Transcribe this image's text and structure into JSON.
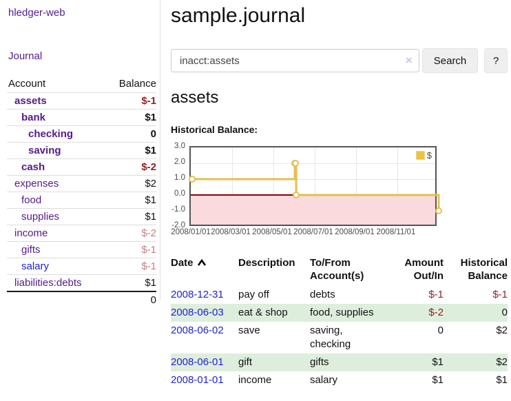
{
  "app": {
    "brand": "hledger-web",
    "nav_journal": "Journal"
  },
  "sidebar": {
    "header": {
      "account": "Account",
      "balance": "Balance"
    },
    "accounts": [
      {
        "name": "assets",
        "balance": "$-1",
        "indent": 1,
        "weight": "bold",
        "link": "purple",
        "tone": "neg"
      },
      {
        "name": "bank",
        "balance": "$1",
        "indent": 2,
        "weight": "bold",
        "link": "purple",
        "tone": "plain"
      },
      {
        "name": "checking",
        "balance": "0",
        "indent": 3,
        "weight": "bold",
        "link": "purple",
        "tone": "plain"
      },
      {
        "name": "saving",
        "balance": "$1",
        "indent": 3,
        "weight": "bold",
        "link": "purple",
        "tone": "plain"
      },
      {
        "name": "cash",
        "balance": "$-2",
        "indent": 2,
        "weight": "bold",
        "link": "purple",
        "tone": "neg"
      },
      {
        "name": "expenses",
        "balance": "$2",
        "indent": 1,
        "weight": "normal",
        "link": "purple",
        "tone": "plain"
      },
      {
        "name": "food",
        "balance": "$1",
        "indent": 2,
        "weight": "normal",
        "link": "purple",
        "tone": "plain"
      },
      {
        "name": "supplies",
        "balance": "$1",
        "indent": 2,
        "weight": "normal",
        "link": "purple",
        "tone": "plain"
      },
      {
        "name": "income",
        "balance": "$-2",
        "indent": 1,
        "weight": "normal",
        "link": "purple",
        "tone": "muted"
      },
      {
        "name": "gifts",
        "balance": "$-1",
        "indent": 2,
        "weight": "normal",
        "link": "purple",
        "tone": "muted"
      },
      {
        "name": "salary",
        "balance": "$-1",
        "indent": 2,
        "weight": "normal",
        "link": "blue",
        "tone": "muted"
      },
      {
        "name": "liabilities:debts",
        "balance": "$1",
        "indent": 1,
        "weight": "normal",
        "link": "purple",
        "tone": "plain"
      }
    ],
    "total": "0"
  },
  "header": {
    "title": "sample.journal"
  },
  "search": {
    "value": "inacct:assets",
    "clear_icon": "×",
    "button_label": "Search",
    "help_label": "?"
  },
  "main": {
    "account_title": "assets",
    "chart_label": "Historical Balance:"
  },
  "chart_data": {
    "type": "line",
    "style": "step",
    "title": "Historical Balance:",
    "series": [
      {
        "name": "$",
        "color": "#E5BF4E",
        "points": [
          [
            "2008-01-01",
            1
          ],
          [
            "2008-06-01",
            2
          ],
          [
            "2008-06-02",
            2
          ],
          [
            "2008-06-03",
            0
          ],
          [
            "2008-12-31",
            -1
          ]
        ]
      }
    ],
    "ylim": [
      -2.0,
      3.0
    ],
    "yticks": [
      "3.0",
      "2.0",
      "1.0",
      "0.0",
      "-1.0",
      "-2.0"
    ],
    "xticks": [
      "2008/01/01",
      "2008/03/01",
      "2008/05/01",
      "2008/07/01",
      "2008/09/01",
      "2008/11/01"
    ],
    "grid": true,
    "legend": {
      "label": "$",
      "position": "top-right",
      "swatch_color": "#EDC240"
    },
    "negative_fill": "#FADADC",
    "zero_line_color": "#8B0000"
  },
  "register": {
    "columns": [
      "Date",
      "Description",
      "To/From Account(s)",
      "Amount Out/In",
      "Historical Balance"
    ],
    "sort_icon": "chevron-up",
    "rows": [
      {
        "date": "2008-12-31",
        "description": "pay off",
        "accounts": "debts",
        "amount": "$-1",
        "amount_tone": "neg",
        "balance": "$-1",
        "balance_tone": "neg"
      },
      {
        "date": "2008-06-03",
        "description": "eat & shop",
        "accounts": "food, supplies",
        "amount": "$-2",
        "amount_tone": "neg",
        "balance": "0",
        "balance_tone": "plain"
      },
      {
        "date": "2008-06-02",
        "description": "save",
        "accounts": "saving, checking",
        "amount": "0",
        "amount_tone": "plain",
        "balance": "$2",
        "balance_tone": "plain"
      },
      {
        "date": "2008-06-01",
        "description": "gift",
        "accounts": "gifts",
        "amount": "$1",
        "amount_tone": "plain",
        "balance": "$2",
        "balance_tone": "plain"
      },
      {
        "date": "2008-01-01",
        "description": "income",
        "accounts": "salary",
        "amount": "$1",
        "amount_tone": "plain",
        "balance": "$1",
        "balance_tone": "plain"
      }
    ]
  },
  "colors": {
    "link_purple": "#551A8B",
    "link_blue": "#2222CC",
    "negative_strong": "#941F24",
    "negative_muted": "#C67F84",
    "row_stripe_green": "#DEEEDD",
    "chart_gold": "#EDC240",
    "chart_negative_fill": "#FADADC",
    "chart_zero_line": "#8B0000",
    "chart_border": "#545454"
  }
}
